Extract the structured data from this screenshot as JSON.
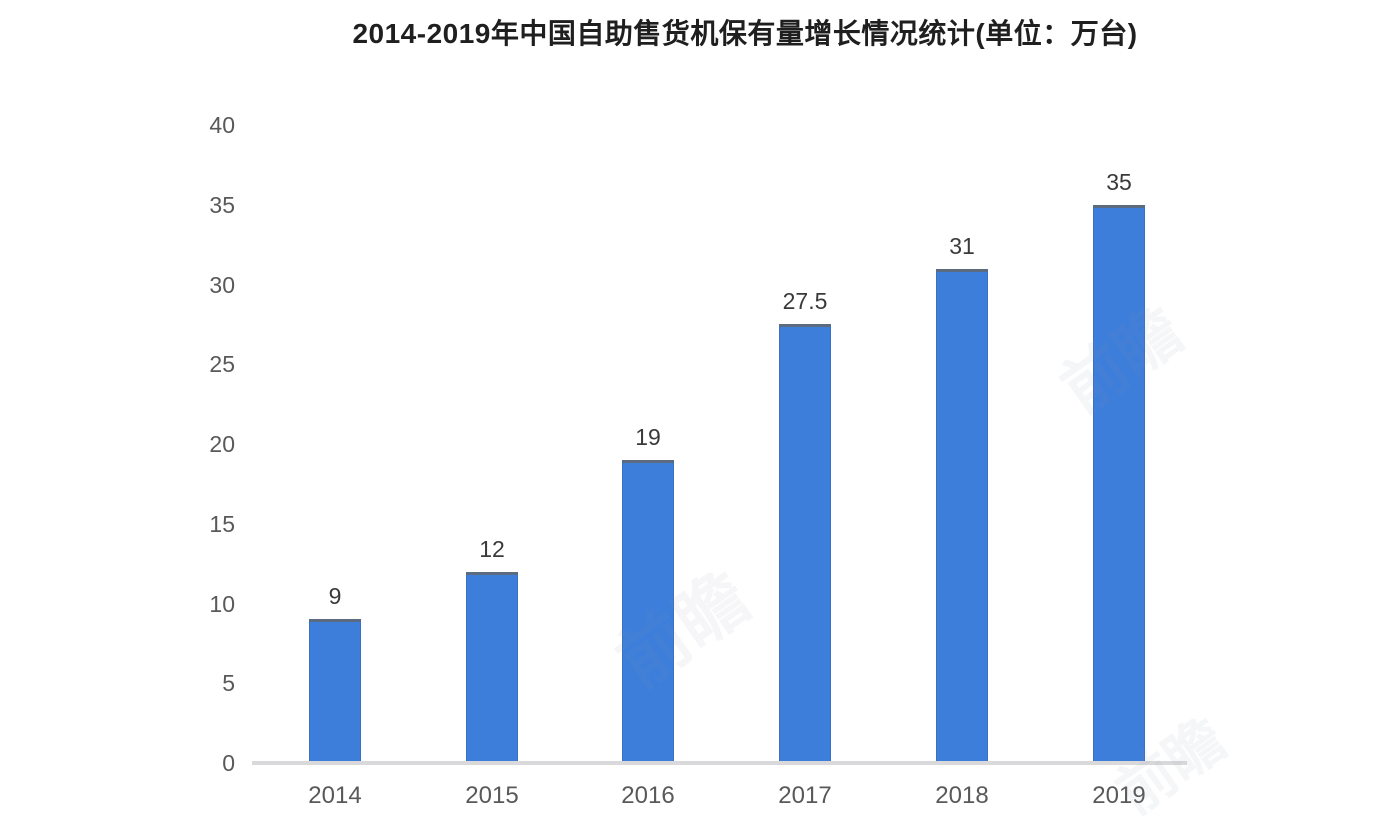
{
  "title": "2014-2019年中国自助售货机保有量增长情况统计(单位：万台)",
  "colors": {
    "bar": "#3d7edb",
    "bar_top_edge": "#5d6b7e",
    "bar_side_edge": "#3a70c2",
    "axis_line": "#d9d9dc",
    "tick_text": "#595959",
    "value_text": "#3a3a3a",
    "title_text": "#1f1f1f",
    "background": "#ffffff"
  },
  "chart_data": {
    "type": "bar",
    "title": "2014-2019年中国自助售货机保有量增长情况统计(单位：万台)",
    "categories": [
      "2014",
      "2015",
      "2016",
      "2017",
      "2018",
      "2019"
    ],
    "values": [
      9,
      12,
      19,
      27.5,
      31,
      35
    ],
    "value_labels": [
      "9",
      "12",
      "19",
      "27.5",
      "31",
      "35"
    ],
    "xlabel": "",
    "ylabel": "",
    "ylim": [
      0,
      40
    ],
    "yticks": [
      0,
      5,
      10,
      15,
      20,
      25,
      30,
      35,
      40
    ],
    "grid": false,
    "legend": null,
    "bar_color": "#3d7edb",
    "unit": "万台"
  },
  "watermark": {
    "text": "前瞻"
  }
}
